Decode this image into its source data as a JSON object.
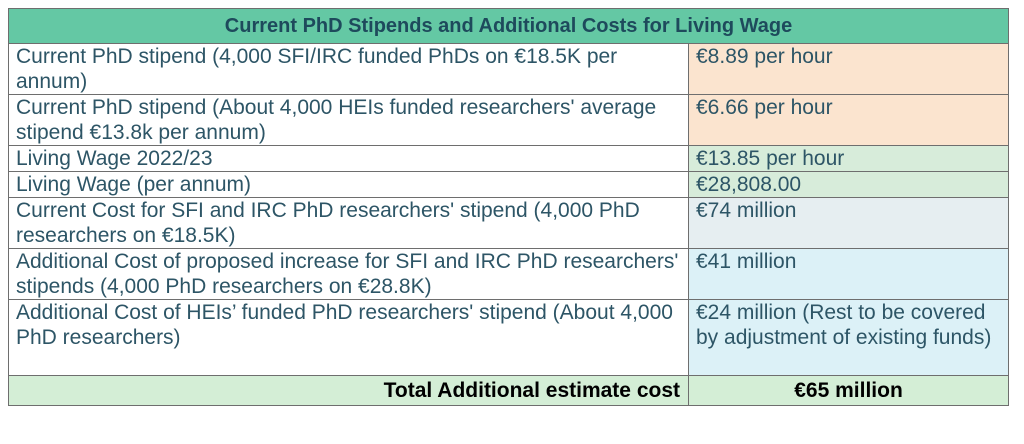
{
  "table": {
    "title": "Current PhD Stipends and Additional Costs for Living Wage",
    "rows": [
      {
        "label": "Current PhD stipend (4,000 SFI/IRC funded PhDs on €18.5K per annum)",
        "value": "€8.89 per hour",
        "color": "#fbe4cf"
      },
      {
        "label": "Current PhD stipend (About 4,000 HEIs funded researchers' average stipend €13.8k per annum)",
        "value": "€6.66 per hour",
        "color": "#fbe4cf"
      },
      {
        "label": "Living Wage 2022/23",
        "value": "€13.85 per hour",
        "color": "#d7ecda"
      },
      {
        "label": "Living Wage (per annum)",
        "value": "€28,808.00",
        "color": "#d7ecda"
      },
      {
        "label": "Current Cost for SFI and IRC PhD researchers' stipend (4,000 PhD researchers on €18.5K)",
        "value": "€74 million",
        "color": "#e6eef1"
      },
      {
        "label": "Additional Cost of proposed increase for SFI and IRC PhD researchers' stipends (4,000 PhD researchers on €28.8K)",
        "value": "€41 million",
        "color": "#dcf1f7"
      },
      {
        "label": "Additional Cost of HEIs’ funded PhD researchers' stipend (About 4,000 PhD researchers)",
        "value": "€24 million (Rest to be covered by adjustment of existing funds)",
        "color": "#dcf1f7"
      }
    ],
    "total": {
      "label": "Total Additional estimate cost",
      "value": "€65 million"
    }
  }
}
